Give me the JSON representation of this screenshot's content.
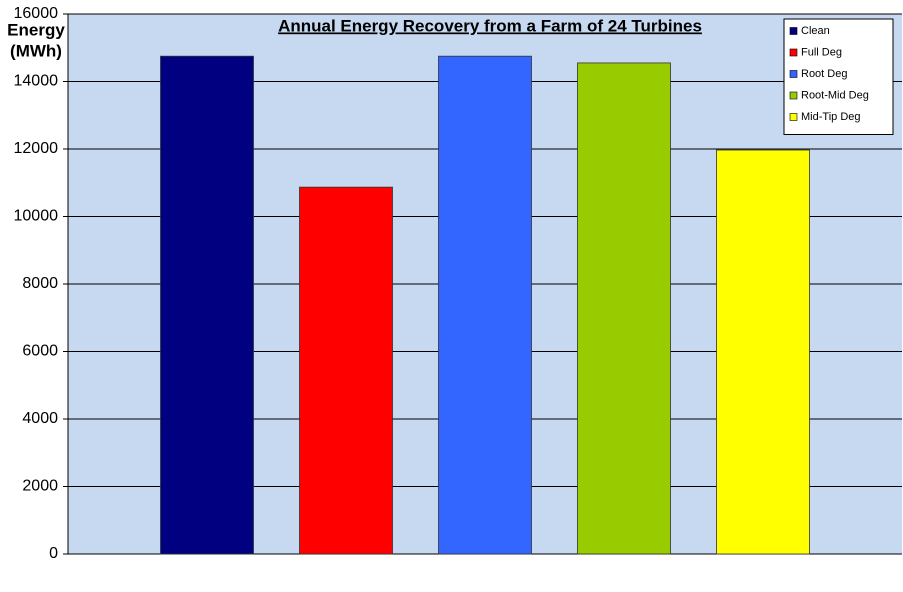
{
  "chart_data": {
    "type": "bar",
    "title": "Annual Energy Recovery from a Farm of 24 Turbines",
    "y_label": [
      "Energy",
      "(MWh)"
    ],
    "categories": [
      null
    ],
    "series": [
      {
        "name": "Clean",
        "color": "#000080",
        "values": [
          14750
        ]
      },
      {
        "name": "Full Deg",
        "color": "#ff0000",
        "values": [
          10870
        ]
      },
      {
        "name": "Root Deg",
        "color": "#3366ff",
        "values": [
          14750
        ]
      },
      {
        "name": "Root-Mid Deg",
        "color": "#99cc00",
        "values": [
          14550
        ]
      },
      {
        "name": "Mid-Tip Deg",
        "color": "#ffff00",
        "values": [
          11970
        ]
      }
    ],
    "ylim": [
      0,
      16000
    ],
    "yticks": [
      0,
      2000,
      4000,
      6000,
      8000,
      10000,
      12000,
      14000,
      16000
    ],
    "grid": true,
    "legend": "upper right"
  }
}
